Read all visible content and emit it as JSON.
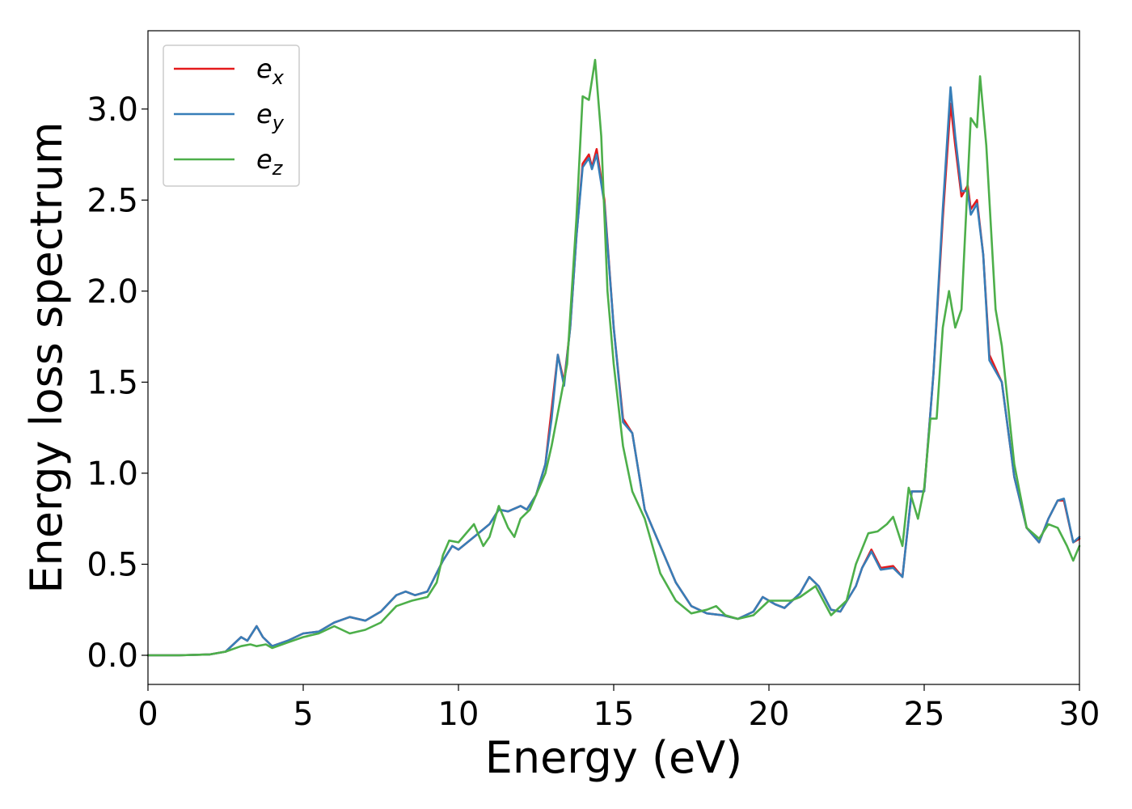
{
  "chart_data": {
    "type": "line",
    "title": "",
    "xlabel": "Energy (eV)",
    "ylabel": "Energy loss spectrum",
    "xlim": [
      0,
      30
    ],
    "ylim": [
      -0.16,
      3.43
    ],
    "xticks": [
      0,
      5,
      10,
      15,
      20,
      25,
      30
    ],
    "xtick_labels": [
      "0",
      "5",
      "10",
      "15",
      "20",
      "25",
      "30"
    ],
    "yticks": [
      0.0,
      0.5,
      1.0,
      1.5,
      2.0,
      2.5,
      3.0
    ],
    "ytick_labels": [
      "0.0",
      "0.5",
      "1.0",
      "1.5",
      "2.0",
      "2.5",
      "3.0"
    ],
    "grid": false,
    "legend_position": "top-left",
    "series": [
      {
        "name": "e_x",
        "legend_base": "e",
        "legend_sub": "x",
        "color": "#e41a1c",
        "points": [
          [
            0,
            0
          ],
          [
            1,
            0
          ],
          [
            2,
            0.005
          ],
          [
            2.5,
            0.02
          ],
          [
            3.0,
            0.1
          ],
          [
            3.2,
            0.08
          ],
          [
            3.5,
            0.16
          ],
          [
            3.7,
            0.1
          ],
          [
            4.0,
            0.05
          ],
          [
            4.5,
            0.08
          ],
          [
            5.0,
            0.12
          ],
          [
            5.5,
            0.13
          ],
          [
            6.0,
            0.18
          ],
          [
            6.5,
            0.21
          ],
          [
            7.0,
            0.19
          ],
          [
            7.5,
            0.24
          ],
          [
            8.0,
            0.33
          ],
          [
            8.3,
            0.35
          ],
          [
            8.6,
            0.33
          ],
          [
            9.0,
            0.35
          ],
          [
            9.5,
            0.52
          ],
          [
            9.8,
            0.6
          ],
          [
            10.0,
            0.58
          ],
          [
            10.5,
            0.65
          ],
          [
            11.0,
            0.72
          ],
          [
            11.3,
            0.8
          ],
          [
            11.6,
            0.79
          ],
          [
            12.0,
            0.82
          ],
          [
            12.2,
            0.8
          ],
          [
            12.5,
            0.88
          ],
          [
            12.8,
            1.05
          ],
          [
            13.0,
            1.35
          ],
          [
            13.2,
            1.65
          ],
          [
            13.4,
            1.5
          ],
          [
            13.6,
            1.8
          ],
          [
            13.8,
            2.3
          ],
          [
            14.0,
            2.7
          ],
          [
            14.2,
            2.75
          ],
          [
            14.3,
            2.68
          ],
          [
            14.45,
            2.78
          ],
          [
            14.7,
            2.5
          ],
          [
            15.0,
            1.8
          ],
          [
            15.3,
            1.3
          ],
          [
            15.6,
            1.22
          ],
          [
            16.0,
            0.8
          ],
          [
            16.5,
            0.6
          ],
          [
            17.0,
            0.4
          ],
          [
            17.5,
            0.27
          ],
          [
            18.0,
            0.23
          ],
          [
            18.5,
            0.22
          ],
          [
            19.0,
            0.2
          ],
          [
            19.5,
            0.24
          ],
          [
            19.8,
            0.32
          ],
          [
            20.2,
            0.28
          ],
          [
            20.5,
            0.26
          ],
          [
            21.0,
            0.34
          ],
          [
            21.3,
            0.43
          ],
          [
            21.6,
            0.38
          ],
          [
            22.0,
            0.25
          ],
          [
            22.3,
            0.24
          ],
          [
            22.8,
            0.38
          ],
          [
            23.0,
            0.48
          ],
          [
            23.3,
            0.58
          ],
          [
            23.6,
            0.48
          ],
          [
            24.0,
            0.49
          ],
          [
            24.3,
            0.43
          ],
          [
            24.6,
            0.9
          ],
          [
            25.0,
            0.9
          ],
          [
            25.3,
            1.55
          ],
          [
            25.6,
            2.4
          ],
          [
            25.85,
            3.03
          ],
          [
            26.0,
            2.8
          ],
          [
            26.2,
            2.52
          ],
          [
            26.4,
            2.58
          ],
          [
            26.5,
            2.45
          ],
          [
            26.7,
            2.5
          ],
          [
            26.9,
            2.2
          ],
          [
            27.1,
            1.65
          ],
          [
            27.5,
            1.5
          ],
          [
            27.9,
            0.98
          ],
          [
            28.3,
            0.7
          ],
          [
            28.7,
            0.62
          ],
          [
            29.0,
            0.75
          ],
          [
            29.3,
            0.85
          ],
          [
            29.5,
            0.85
          ],
          [
            29.8,
            0.62
          ],
          [
            30.0,
            0.64
          ]
        ]
      },
      {
        "name": "e_y",
        "legend_base": "e",
        "legend_sub": "y",
        "color": "#377eb8",
        "points": [
          [
            0,
            0
          ],
          [
            1,
            0
          ],
          [
            2,
            0.005
          ],
          [
            2.5,
            0.02
          ],
          [
            3.0,
            0.1
          ],
          [
            3.2,
            0.08
          ],
          [
            3.5,
            0.16
          ],
          [
            3.7,
            0.1
          ],
          [
            4.0,
            0.05
          ],
          [
            4.5,
            0.08
          ],
          [
            5.0,
            0.12
          ],
          [
            5.5,
            0.13
          ],
          [
            6.0,
            0.18
          ],
          [
            6.5,
            0.21
          ],
          [
            7.0,
            0.19
          ],
          [
            7.5,
            0.24
          ],
          [
            8.0,
            0.33
          ],
          [
            8.3,
            0.35
          ],
          [
            8.6,
            0.33
          ],
          [
            9.0,
            0.35
          ],
          [
            9.5,
            0.52
          ],
          [
            9.8,
            0.6
          ],
          [
            10.0,
            0.58
          ],
          [
            10.5,
            0.65
          ],
          [
            11.0,
            0.72
          ],
          [
            11.3,
            0.8
          ],
          [
            11.6,
            0.79
          ],
          [
            12.0,
            0.82
          ],
          [
            12.2,
            0.8
          ],
          [
            12.5,
            0.88
          ],
          [
            12.8,
            1.05
          ],
          [
            13.0,
            1.3
          ],
          [
            13.2,
            1.65
          ],
          [
            13.4,
            1.48
          ],
          [
            13.6,
            1.8
          ],
          [
            13.8,
            2.3
          ],
          [
            14.0,
            2.68
          ],
          [
            14.2,
            2.73
          ],
          [
            14.3,
            2.67
          ],
          [
            14.45,
            2.75
          ],
          [
            14.7,
            2.48
          ],
          [
            15.0,
            1.8
          ],
          [
            15.3,
            1.28
          ],
          [
            15.6,
            1.22
          ],
          [
            16.0,
            0.8
          ],
          [
            16.5,
            0.6
          ],
          [
            17.0,
            0.4
          ],
          [
            17.5,
            0.27
          ],
          [
            18.0,
            0.23
          ],
          [
            18.5,
            0.22
          ],
          [
            19.0,
            0.2
          ],
          [
            19.5,
            0.24
          ],
          [
            19.8,
            0.32
          ],
          [
            20.2,
            0.28
          ],
          [
            20.5,
            0.26
          ],
          [
            21.0,
            0.34
          ],
          [
            21.3,
            0.43
          ],
          [
            21.6,
            0.38
          ],
          [
            22.0,
            0.25
          ],
          [
            22.3,
            0.24
          ],
          [
            22.8,
            0.38
          ],
          [
            23.0,
            0.48
          ],
          [
            23.3,
            0.57
          ],
          [
            23.6,
            0.47
          ],
          [
            24.0,
            0.48
          ],
          [
            24.3,
            0.43
          ],
          [
            24.6,
            0.9
          ],
          [
            25.0,
            0.9
          ],
          [
            25.3,
            1.55
          ],
          [
            25.6,
            2.45
          ],
          [
            25.85,
            3.12
          ],
          [
            26.0,
            2.85
          ],
          [
            26.2,
            2.55
          ],
          [
            26.4,
            2.55
          ],
          [
            26.5,
            2.42
          ],
          [
            26.7,
            2.48
          ],
          [
            26.9,
            2.2
          ],
          [
            27.1,
            1.62
          ],
          [
            27.5,
            1.5
          ],
          [
            27.9,
            0.98
          ],
          [
            28.3,
            0.7
          ],
          [
            28.7,
            0.62
          ],
          [
            29.0,
            0.75
          ],
          [
            29.3,
            0.85
          ],
          [
            29.5,
            0.86
          ],
          [
            29.8,
            0.62
          ],
          [
            30.0,
            0.65
          ]
        ]
      },
      {
        "name": "e_z",
        "legend_base": "e",
        "legend_sub": "z",
        "color": "#4daf4a",
        "points": [
          [
            0,
            0
          ],
          [
            1,
            0
          ],
          [
            2,
            0.005
          ],
          [
            2.5,
            0.02
          ],
          [
            3.0,
            0.05
          ],
          [
            3.3,
            0.06
          ],
          [
            3.5,
            0.05
          ],
          [
            3.8,
            0.06
          ],
          [
            4.0,
            0.04
          ],
          [
            4.5,
            0.07
          ],
          [
            5.0,
            0.1
          ],
          [
            5.5,
            0.12
          ],
          [
            6.0,
            0.16
          ],
          [
            6.5,
            0.12
          ],
          [
            7.0,
            0.14
          ],
          [
            7.5,
            0.18
          ],
          [
            8.0,
            0.27
          ],
          [
            8.5,
            0.3
          ],
          [
            9.0,
            0.32
          ],
          [
            9.3,
            0.4
          ],
          [
            9.5,
            0.55
          ],
          [
            9.7,
            0.63
          ],
          [
            10.0,
            0.62
          ],
          [
            10.3,
            0.68
          ],
          [
            10.5,
            0.72
          ],
          [
            10.8,
            0.6
          ],
          [
            11.0,
            0.65
          ],
          [
            11.3,
            0.82
          ],
          [
            11.6,
            0.7
          ],
          [
            11.8,
            0.65
          ],
          [
            12.0,
            0.75
          ],
          [
            12.3,
            0.8
          ],
          [
            12.5,
            0.88
          ],
          [
            12.8,
            1.0
          ],
          [
            13.0,
            1.15
          ],
          [
            13.5,
            1.6
          ],
          [
            13.8,
            2.4
          ],
          [
            14.0,
            3.07
          ],
          [
            14.2,
            3.05
          ],
          [
            14.4,
            3.27
          ],
          [
            14.6,
            2.85
          ],
          [
            14.8,
            2.0
          ],
          [
            15.0,
            1.6
          ],
          [
            15.3,
            1.15
          ],
          [
            15.6,
            0.9
          ],
          [
            16.0,
            0.75
          ],
          [
            16.5,
            0.45
          ],
          [
            17.0,
            0.3
          ],
          [
            17.5,
            0.23
          ],
          [
            18.0,
            0.25
          ],
          [
            18.3,
            0.27
          ],
          [
            18.6,
            0.22
          ],
          [
            19.0,
            0.2
          ],
          [
            19.5,
            0.22
          ],
          [
            20.0,
            0.3
          ],
          [
            20.4,
            0.3
          ],
          [
            20.7,
            0.3
          ],
          [
            21.0,
            0.32
          ],
          [
            21.5,
            0.38
          ],
          [
            22.0,
            0.22
          ],
          [
            22.5,
            0.3
          ],
          [
            22.8,
            0.5
          ],
          [
            23.2,
            0.67
          ],
          [
            23.5,
            0.68
          ],
          [
            23.8,
            0.72
          ],
          [
            24.0,
            0.76
          ],
          [
            24.3,
            0.6
          ],
          [
            24.5,
            0.92
          ],
          [
            24.8,
            0.75
          ],
          [
            25.0,
            0.92
          ],
          [
            25.2,
            1.3
          ],
          [
            25.4,
            1.3
          ],
          [
            25.6,
            1.8
          ],
          [
            25.8,
            2.0
          ],
          [
            26.0,
            1.8
          ],
          [
            26.2,
            1.9
          ],
          [
            26.5,
            2.95
          ],
          [
            26.7,
            2.9
          ],
          [
            26.8,
            3.18
          ],
          [
            27.0,
            2.8
          ],
          [
            27.3,
            1.9
          ],
          [
            27.5,
            1.7
          ],
          [
            27.9,
            1.05
          ],
          [
            28.3,
            0.7
          ],
          [
            28.7,
            0.64
          ],
          [
            29.0,
            0.72
          ],
          [
            29.3,
            0.7
          ],
          [
            29.6,
            0.6
          ],
          [
            29.8,
            0.52
          ],
          [
            30.0,
            0.6
          ]
        ]
      }
    ]
  }
}
